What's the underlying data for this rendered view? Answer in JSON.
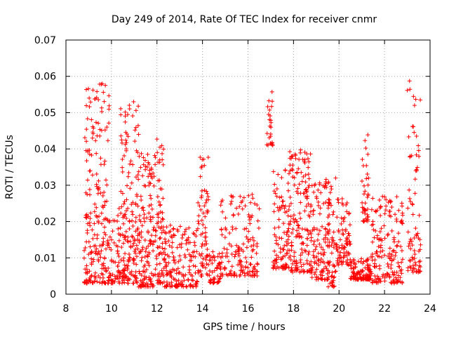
{
  "chart_data": {
    "type": "scatter",
    "title": "Day 249 of 2014, Rate Of TEC Index for receiver cnmr",
    "xlabel": "GPS time / hours",
    "ylabel": "ROTI / TECUs",
    "xlim": [
      8,
      24
    ],
    "ylim": [
      0,
      0.07
    ],
    "xticks": [
      "8",
      "10",
      "12",
      "14",
      "16",
      "18",
      "20",
      "22",
      "24"
    ],
    "yticks": [
      "0",
      "0.01",
      "0.02",
      "0.03",
      "0.04",
      "0.05",
      "0.06",
      "0.07"
    ],
    "grid": true,
    "marker": "+",
    "color": "#ff0000",
    "series": [
      {
        "name": "ROTI",
        "clusters": [
          {
            "x": [
              8.8,
              9.9
            ],
            "y": [
              0.003,
              0.058
            ],
            "n": 220
          },
          {
            "x": [
              9.9,
              10.4
            ],
            "y": [
              0.003,
              0.025
            ],
            "n": 60
          },
          {
            "x": [
              10.4,
              11.2
            ],
            "y": [
              0.003,
              0.053
            ],
            "n": 170
          },
          {
            "x": [
              11.2,
              11.9
            ],
            "y": [
              0.002,
              0.04
            ],
            "n": 140
          },
          {
            "x": [
              11.9,
              12.3
            ],
            "y": [
              0.003,
              0.043
            ],
            "n": 80
          },
          {
            "x": [
              12.3,
              13.8
            ],
            "y": [
              0.002,
              0.019
            ],
            "n": 170
          },
          {
            "x": [
              13.8,
              14.3
            ],
            "y": [
              0.005,
              0.038
            ],
            "n": 70
          },
          {
            "x": [
              14.3,
              14.8
            ],
            "y": [
              0.003,
              0.012
            ],
            "n": 50
          },
          {
            "x": [
              14.8,
              16.5
            ],
            "y": [
              0.005,
              0.028
            ],
            "n": 160
          },
          {
            "x": [
              16.8,
              17.1
            ],
            "y": [
              0.041,
              0.056
            ],
            "n": 25
          },
          {
            "x": [
              17.1,
              17.8
            ],
            "y": [
              0.007,
              0.035
            ],
            "n": 100
          },
          {
            "x": [
              17.8,
              18.8
            ],
            "y": [
              0.006,
              0.04
            ],
            "n": 170
          },
          {
            "x": [
              18.8,
              19.6
            ],
            "y": [
              0.004,
              0.032
            ],
            "n": 120
          },
          {
            "x": [
              19.5,
              19.9
            ],
            "y": [
              0.002,
              0.032
            ],
            "n": 50
          },
          {
            "x": [
              19.9,
              20.5
            ],
            "y": [
              0.008,
              0.027
            ],
            "n": 80
          },
          {
            "x": [
              20.5,
              21.4
            ],
            "y": [
              0.004,
              0.01
            ],
            "n": 110
          },
          {
            "x": [
              21.0,
              21.3
            ],
            "y": [
              0.02,
              0.044
            ],
            "n": 40
          },
          {
            "x": [
              21.4,
              22.8
            ],
            "y": [
              0.003,
              0.027
            ],
            "n": 170
          },
          {
            "x": [
              23.0,
              23.6
            ],
            "y": [
              0.006,
              0.061
            ],
            "n": 80
          }
        ]
      }
    ]
  }
}
